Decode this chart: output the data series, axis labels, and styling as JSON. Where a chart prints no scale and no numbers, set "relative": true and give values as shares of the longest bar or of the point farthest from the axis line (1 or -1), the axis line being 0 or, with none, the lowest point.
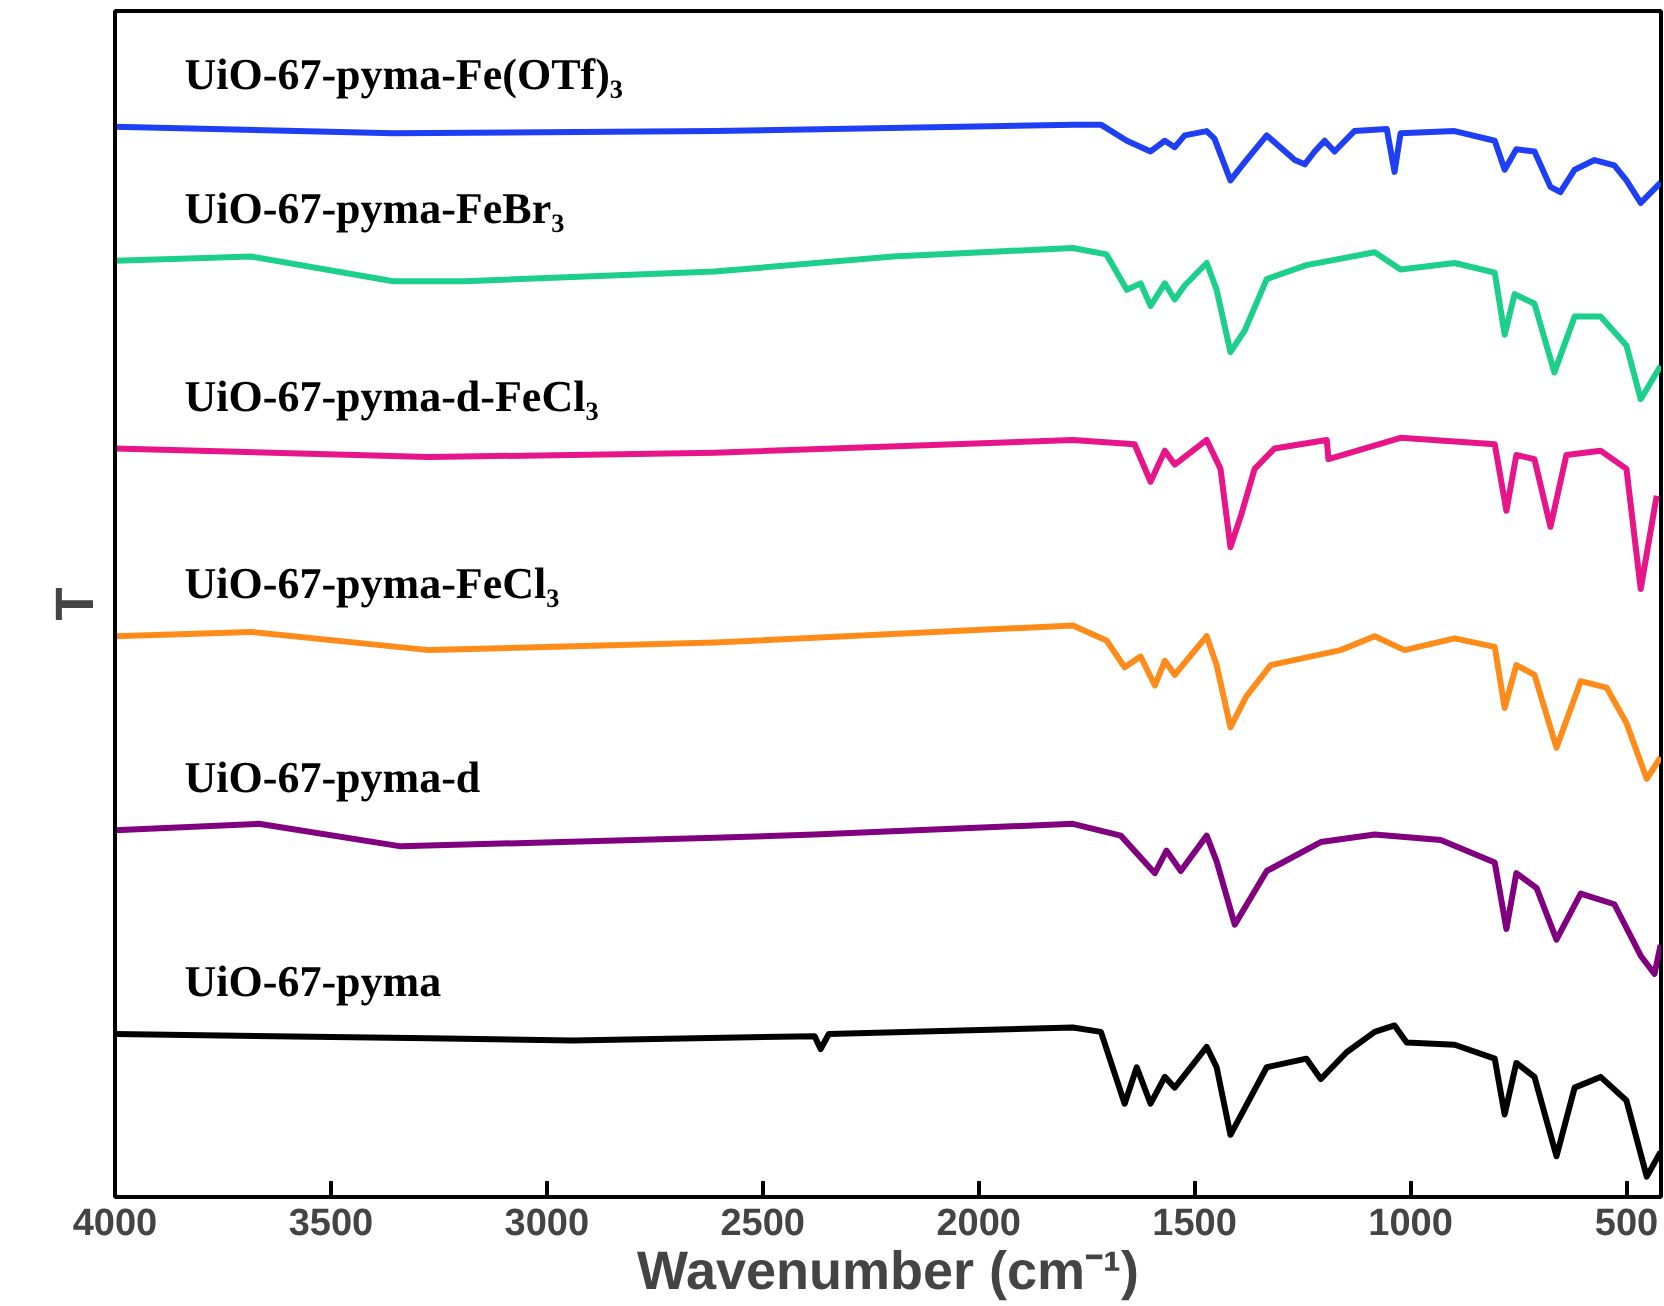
{
  "chart_data": {
    "type": "line",
    "relative": true,
    "xlabel": "Wavenumber (cm⁻¹)",
    "ylabel": "T",
    "xlim": [
      4000,
      420
    ],
    "xticks": [
      4000,
      3500,
      3000,
      2500,
      2000,
      1500,
      1000,
      500
    ],
    "grid": false,
    "legend": false,
    "marker": "none",
    "line_style": "solid",
    "series": [
      {
        "name": "UiO-67-pyma-Fe(OTf)₃",
        "color": "#1f3ff5",
        "x": [
          4000,
          3356,
          2611,
          1782,
          1717,
          1657,
          1602,
          1569,
          1546,
          1523,
          1472,
          1454,
          1417,
          1384,
          1333,
          1268,
          1245,
          1222,
          1199,
          1176,
          1130,
          1055,
          1037,
          1023,
          898,
          805,
          782,
          755,
          713,
          676,
          653,
          620,
          574,
          528,
          500,
          467,
          421
        ],
        "values": [
          0.998,
          0.992,
          0.994,
          1.0,
          1.0,
          0.985,
          0.975,
          0.985,
          0.979,
          0.99,
          0.994,
          0.987,
          0.948,
          0.965,
          0.99,
          0.967,
          0.963,
          0.975,
          0.985,
          0.975,
          0.994,
          0.996,
          0.956,
          0.992,
          0.994,
          0.985,
          0.958,
          0.977,
          0.975,
          0.942,
          0.937,
          0.958,
          0.967,
          0.962,
          0.948,
          0.927,
          0.946
        ]
      },
      {
        "name": "UiO-67-pyma-FeBr₃",
        "color": "#1ccf8a",
        "x": [
          4000,
          3685,
          3356,
          3190,
          2611,
          2199,
          1782,
          1704,
          1657,
          1625,
          1602,
          1569,
          1546,
          1523,
          1472,
          1449,
          1417,
          1384,
          1333,
          1241,
          1083,
          1023,
          898,
          805,
          782,
          759,
          713,
          667,
          620,
          560,
          500,
          467,
          421
        ],
        "values": [
          0.873,
          0.877,
          0.854,
          0.854,
          0.863,
          0.877,
          0.885,
          0.879,
          0.846,
          0.852,
          0.831,
          0.852,
          0.837,
          0.85,
          0.871,
          0.846,
          0.788,
          0.808,
          0.856,
          0.869,
          0.881,
          0.865,
          0.871,
          0.862,
          0.804,
          0.842,
          0.833,
          0.769,
          0.821,
          0.821,
          0.794,
          0.744,
          0.775
        ]
      },
      {
        "name": "UiO-67-pyma-d-FeCl₃",
        "color": "#e8158a",
        "x": [
          4000,
          3273,
          2611,
          1782,
          1639,
          1602,
          1569,
          1546,
          1472,
          1440,
          1417,
          1393,
          1361,
          1315,
          1194,
          1190,
          1023,
          805,
          778,
          755,
          713,
          676,
          639,
          560,
          500,
          467,
          430
        ],
        "values": [
          0.698,
          0.69,
          0.694,
          0.706,
          0.702,
          0.667,
          0.696,
          0.683,
          0.706,
          0.679,
          0.606,
          0.635,
          0.679,
          0.698,
          0.706,
          0.688,
          0.708,
          0.702,
          0.64,
          0.692,
          0.688,
          0.625,
          0.692,
          0.696,
          0.679,
          0.567,
          0.654
        ]
      },
      {
        "name": "UiO-67-pyma-FeCl₃",
        "color": "#ff8c1a",
        "x": [
          4000,
          3685,
          3273,
          2611,
          1782,
          1704,
          1662,
          1625,
          1592,
          1569,
          1546,
          1472,
          1449,
          1417,
          1380,
          1324,
          1162,
          1083,
          1014,
          898,
          805,
          782,
          755,
          713,
          662,
          606,
          546,
          500,
          453,
          421
        ],
        "values": [
          0.523,
          0.527,
          0.51,
          0.517,
          0.533,
          0.519,
          0.494,
          0.504,
          0.477,
          0.5,
          0.487,
          0.523,
          0.496,
          0.438,
          0.467,
          0.496,
          0.51,
          0.523,
          0.51,
          0.521,
          0.513,
          0.456,
          0.496,
          0.487,
          0.419,
          0.481,
          0.475,
          0.442,
          0.39,
          0.41
        ]
      },
      {
        "name": "UiO-67-pyma-d",
        "color": "#800080",
        "x": [
          4000,
          3667,
          3338,
          2611,
          2380,
          1782,
          1671,
          1592,
          1565,
          1532,
          1472,
          1449,
          1407,
          1333,
          1208,
          1083,
          930,
          805,
          778,
          755,
          708,
          662,
          606,
          528,
          467,
          435,
          421
        ],
        "values": [
          0.342,
          0.348,
          0.327,
          0.335,
          0.338,
          0.348,
          0.337,
          0.302,
          0.323,
          0.304,
          0.337,
          0.313,
          0.254,
          0.304,
          0.331,
          0.338,
          0.333,
          0.312,
          0.25,
          0.302,
          0.288,
          0.24,
          0.283,
          0.273,
          0.225,
          0.208,
          0.235
        ]
      },
      {
        "name": "UiO-67-pyma",
        "color": "#000000",
        "x": [
          4000,
          3273,
          2940,
          2380,
          2366,
          2347,
          1782,
          1717,
          1662,
          1634,
          1602,
          1569,
          1546,
          1472,
          1449,
          1417,
          1333,
          1241,
          1208,
          1148,
          1083,
          1037,
          1009,
          898,
          805,
          782,
          755,
          713,
          662,
          620,
          560,
          500,
          453,
          421
        ],
        "values": [
          0.152,
          0.148,
          0.146,
          0.15,
          0.138,
          0.152,
          0.158,
          0.154,
          0.087,
          0.121,
          0.087,
          0.112,
          0.102,
          0.14,
          0.121,
          0.058,
          0.121,
          0.129,
          0.11,
          0.135,
          0.154,
          0.16,
          0.144,
          0.142,
          0.129,
          0.077,
          0.125,
          0.112,
          0.038,
          0.102,
          0.112,
          0.09,
          0.019,
          0.042
        ]
      }
    ]
  }
}
